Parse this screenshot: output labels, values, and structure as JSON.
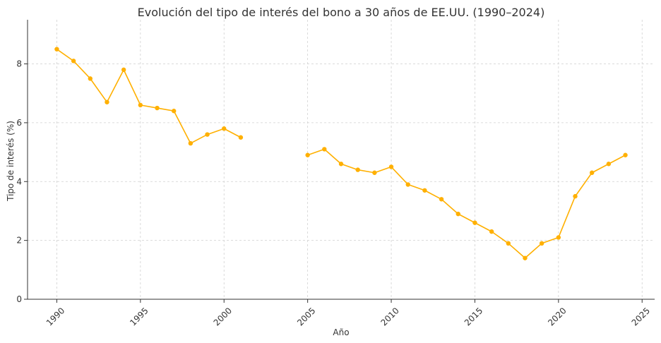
{
  "chart_data": {
    "type": "line",
    "title": "Evolución del tipo de interés del bono a 30 años de EE.UU. (1990–2024)",
    "xlabel": "Año",
    "ylabel": "Tipo de interés (%)",
    "xlim": [
      1988.25,
      2025.75
    ],
    "ylim": [
      0,
      9.5
    ],
    "x_ticks": [
      1990,
      1995,
      2000,
      2005,
      2010,
      2015,
      2020,
      2025
    ],
    "y_ticks": [
      0,
      2,
      4,
      6,
      8
    ],
    "grid": true,
    "color": "#FFB000",
    "series": [
      {
        "x": [
          1990,
          1991,
          1992,
          1993,
          1994,
          1995,
          1996,
          1997,
          1998,
          1999,
          2000,
          2001
        ],
        "y": [
          8.5,
          8.1,
          7.5,
          6.7,
          7.8,
          6.6,
          6.5,
          6.4,
          5.3,
          5.6,
          5.8,
          5.5
        ]
      },
      {
        "x": [
          2005,
          2006,
          2007,
          2008,
          2009,
          2010,
          2011,
          2012,
          2013,
          2014,
          2015,
          2016,
          2017,
          2018,
          2019,
          2020,
          2021,
          2022,
          2023,
          2024
        ],
        "y": [
          4.9,
          5.1,
          4.6,
          4.4,
          4.3,
          4.5,
          3.9,
          3.7,
          3.4,
          2.9,
          2.6,
          2.3,
          1.9,
          1.4,
          1.9,
          2.1,
          3.5,
          4.3,
          4.6,
          4.9
        ]
      }
    ]
  }
}
